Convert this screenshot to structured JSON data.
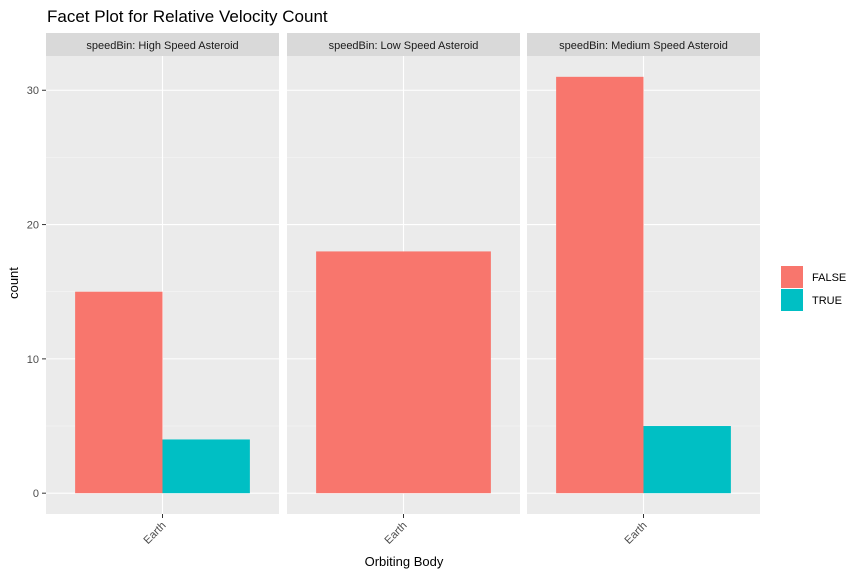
{
  "chart_data": {
    "type": "bar",
    "title": "Facet Plot for Relative Velocity Count",
    "xlabel": "Orbiting Body",
    "ylabel": "count",
    "ylim": [
      -1.55,
      32.55
    ],
    "yticks": [
      0,
      10,
      20,
      30
    ],
    "categories": [
      "Earth"
    ],
    "grid": true,
    "legend_position": "right",
    "legend": [
      {
        "name": "FALSE",
        "color": "#F8766D"
      },
      {
        "name": "TRUE",
        "color": "#00BFC4"
      }
    ],
    "facets": [
      {
        "label": "speedBin: High Speed Asteroid",
        "bars": [
          {
            "category": "Earth",
            "group": "FALSE",
            "value": 15
          },
          {
            "category": "Earth",
            "group": "TRUE",
            "value": 4
          }
        ]
      },
      {
        "label": "speedBin: Low Speed Asteroid",
        "bars": [
          {
            "category": "Earth",
            "group": "FALSE",
            "value": 18
          }
        ]
      },
      {
        "label": "speedBin: Medium Speed Asteroid",
        "bars": [
          {
            "category": "Earth",
            "group": "FALSE",
            "value": 31
          },
          {
            "category": "Earth",
            "group": "TRUE",
            "value": 5
          }
        ]
      }
    ]
  }
}
